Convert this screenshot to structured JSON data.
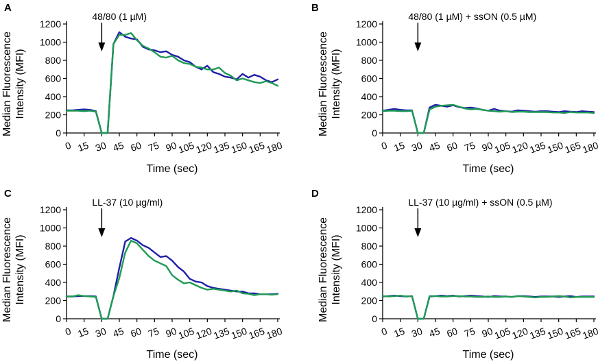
{
  "colors": {
    "series_blue": "#1f1fa8",
    "series_green": "#1f9a55",
    "axis": "#000000"
  },
  "chart_data": [
    {
      "type": "line",
      "panel": "A",
      "annotation": "48/80 (1 µM)",
      "arrow_at_x": 30,
      "xlabel": "Time (sec)",
      "ylabel_line1": "Median Fluorescence",
      "ylabel_line2": "Intensity (MFI)",
      "xlim": [
        0,
        180
      ],
      "ylim": [
        0,
        1200
      ],
      "xticks": [
        "0",
        "15",
        "30",
        "45",
        "60",
        "75",
        "90",
        "105",
        "120",
        "135",
        "150",
        "165",
        "180"
      ],
      "yticks": [
        "0",
        "200",
        "400",
        "600",
        "800",
        "1000",
        "1200"
      ],
      "series": [
        {
          "name": "blue",
          "color": "#1f1fa8",
          "x": [
            0,
            5,
            10,
            15,
            20,
            25,
            30,
            35,
            40,
            45,
            50,
            55,
            60,
            65,
            70,
            75,
            80,
            85,
            90,
            95,
            100,
            105,
            110,
            115,
            120,
            125,
            130,
            135,
            140,
            145,
            150,
            155,
            160,
            165,
            170,
            175,
            180
          ],
          "y": [
            250,
            250,
            255,
            260,
            255,
            240,
            0,
            0,
            980,
            1110,
            1060,
            1040,
            1030,
            950,
            920,
            910,
            890,
            900,
            860,
            840,
            800,
            780,
            730,
            700,
            740,
            670,
            650,
            620,
            610,
            590,
            650,
            610,
            640,
            620,
            580,
            560,
            590
          ]
        },
        {
          "name": "green",
          "color": "#1f9a55",
          "x": [
            0,
            5,
            10,
            15,
            20,
            25,
            30,
            35,
            40,
            45,
            50,
            55,
            60,
            65,
            70,
            75,
            80,
            85,
            90,
            95,
            100,
            105,
            110,
            115,
            120,
            125,
            130,
            135,
            140,
            145,
            150,
            155,
            160,
            165,
            170,
            175,
            180
          ],
          "y": [
            245,
            245,
            245,
            240,
            245,
            235,
            0,
            0,
            980,
            1080,
            1080,
            1100,
            1020,
            960,
            930,
            890,
            840,
            830,
            850,
            800,
            770,
            760,
            730,
            720,
            700,
            700,
            720,
            660,
            630,
            580,
            600,
            580,
            560,
            550,
            570,
            550,
            520
          ]
        }
      ]
    },
    {
      "type": "line",
      "panel": "B",
      "annotation": "48/80 (1 µM) + ssON (0.5 µM)",
      "arrow_at_x": 30,
      "xlabel": "Time (sec)",
      "ylabel_line1": "Median Fluorescence",
      "ylabel_line2": "Intensity (MFI)",
      "xlim": [
        0,
        180
      ],
      "ylim": [
        0,
        1200
      ],
      "xticks": [
        "0",
        "15",
        "30",
        "45",
        "60",
        "75",
        "90",
        "105",
        "120",
        "135",
        "150",
        "165",
        "180"
      ],
      "yticks": [
        "0",
        "200",
        "400",
        "600",
        "800",
        "1000",
        "1200"
      ],
      "series": [
        {
          "name": "blue",
          "color": "#1f1fa8",
          "x": [
            0,
            5,
            10,
            15,
            20,
            25,
            30,
            35,
            40,
            45,
            50,
            55,
            60,
            65,
            70,
            75,
            80,
            85,
            90,
            95,
            100,
            105,
            110,
            115,
            120,
            125,
            130,
            135,
            140,
            145,
            150,
            155,
            160,
            165,
            170,
            175,
            180
          ],
          "y": [
            245,
            255,
            265,
            255,
            250,
            250,
            0,
            0,
            280,
            310,
            300,
            290,
            305,
            285,
            275,
            280,
            270,
            255,
            245,
            265,
            245,
            240,
            235,
            250,
            245,
            240,
            235,
            240,
            240,
            235,
            230,
            240,
            235,
            230,
            240,
            235,
            230
          ]
        },
        {
          "name": "green",
          "color": "#1f9a55",
          "x": [
            0,
            5,
            10,
            15,
            20,
            25,
            30,
            35,
            40,
            45,
            50,
            55,
            60,
            65,
            70,
            75,
            80,
            85,
            90,
            95,
            100,
            105,
            110,
            115,
            120,
            125,
            130,
            135,
            140,
            145,
            150,
            155,
            160,
            165,
            170,
            175,
            180
          ],
          "y": [
            240,
            245,
            245,
            240,
            240,
            245,
            0,
            0,
            260,
            290,
            300,
            305,
            310,
            290,
            270,
            260,
            265,
            255,
            245,
            240,
            235,
            240,
            230,
            235,
            235,
            230,
            230,
            230,
            230,
            225,
            225,
            220,
            230,
            225,
            225,
            225,
            220
          ]
        }
      ]
    },
    {
      "type": "line",
      "panel": "C",
      "annotation": "LL-37 (10 µg/ml)",
      "arrow_at_x": 30,
      "xlabel": "Time (sec)",
      "ylabel_line1": "Median Fluorescence",
      "ylabel_line2": "Intensity (MFI)",
      "xlim": [
        0,
        180
      ],
      "ylim": [
        0,
        1200
      ],
      "xticks": [
        "0",
        "15",
        "30",
        "45",
        "60",
        "75",
        "90",
        "105",
        "120",
        "135",
        "150",
        "165",
        "180"
      ],
      "yticks": [
        "0",
        "200",
        "400",
        "600",
        "800",
        "1000",
        "1200"
      ],
      "series": [
        {
          "name": "blue",
          "color": "#1f1fa8",
          "x": [
            0,
            5,
            10,
            15,
            20,
            25,
            30,
            35,
            40,
            45,
            50,
            55,
            60,
            65,
            70,
            75,
            80,
            85,
            90,
            95,
            100,
            105,
            110,
            115,
            120,
            125,
            130,
            135,
            140,
            145,
            150,
            155,
            160,
            165,
            170,
            175,
            180
          ],
          "y": [
            245,
            245,
            250,
            250,
            250,
            245,
            0,
            0,
            250,
            560,
            850,
            890,
            860,
            810,
            780,
            730,
            680,
            690,
            640,
            570,
            520,
            440,
            410,
            400,
            360,
            340,
            330,
            320,
            310,
            300,
            300,
            280,
            280,
            270,
            270,
            270,
            275
          ]
        },
        {
          "name": "green",
          "color": "#1f9a55",
          "x": [
            0,
            5,
            10,
            15,
            20,
            25,
            30,
            35,
            40,
            45,
            50,
            55,
            60,
            65,
            70,
            75,
            80,
            85,
            90,
            95,
            100,
            105,
            110,
            115,
            120,
            125,
            130,
            135,
            140,
            145,
            150,
            155,
            160,
            165,
            170,
            175,
            180
          ],
          "y": [
            245,
            245,
            260,
            250,
            245,
            240,
            0,
            0,
            250,
            450,
            730,
            860,
            830,
            760,
            690,
            640,
            610,
            580,
            480,
            430,
            390,
            400,
            370,
            340,
            320,
            330,
            320,
            310,
            300,
            310,
            280,
            275,
            260,
            270,
            270,
            265,
            270
          ]
        }
      ]
    },
    {
      "type": "line",
      "panel": "D",
      "annotation": "LL-37 (10 µg/ml) + ssON (0.5 µM)",
      "arrow_at_x": 30,
      "xlabel": "Time (sec)",
      "ylabel_line1": "Median Fluorescence",
      "ylabel_line2": "Intensity (MFI)",
      "xlim": [
        0,
        180
      ],
      "ylim": [
        0,
        1200
      ],
      "xticks": [
        "0",
        "15",
        "30",
        "45",
        "60",
        "75",
        "90",
        "105",
        "120",
        "135",
        "150",
        "165",
        "180"
      ],
      "yticks": [
        "0",
        "200",
        "400",
        "600",
        "800",
        "1000",
        "1200"
      ],
      "series": [
        {
          "name": "blue",
          "color": "#1f1fa8",
          "x": [
            0,
            5,
            10,
            15,
            20,
            25,
            30,
            35,
            40,
            45,
            50,
            55,
            60,
            65,
            70,
            75,
            80,
            85,
            90,
            95,
            100,
            105,
            110,
            115,
            120,
            125,
            130,
            135,
            140,
            145,
            150,
            155,
            160,
            165,
            170,
            175,
            180
          ],
          "y": [
            245,
            250,
            255,
            250,
            245,
            250,
            0,
            0,
            245,
            250,
            255,
            250,
            255,
            245,
            250,
            255,
            250,
            245,
            240,
            250,
            245,
            245,
            240,
            250,
            250,
            245,
            240,
            245,
            245,
            245,
            240,
            245,
            250,
            240,
            245,
            245,
            245
          ]
        },
        {
          "name": "green",
          "color": "#1f9a55",
          "x": [
            0,
            5,
            10,
            15,
            20,
            25,
            30,
            35,
            40,
            45,
            50,
            55,
            60,
            65,
            70,
            75,
            80,
            85,
            90,
            95,
            100,
            105,
            110,
            115,
            120,
            125,
            130,
            135,
            140,
            145,
            150,
            155,
            160,
            165,
            170,
            175,
            180
          ],
          "y": [
            250,
            245,
            250,
            255,
            245,
            250,
            0,
            0,
            250,
            250,
            245,
            245,
            250,
            250,
            245,
            245,
            240,
            240,
            245,
            240,
            240,
            245,
            240,
            250,
            245,
            240,
            235,
            240,
            240,
            245,
            250,
            245,
            235,
            240,
            240,
            240,
            240
          ]
        }
      ]
    }
  ]
}
